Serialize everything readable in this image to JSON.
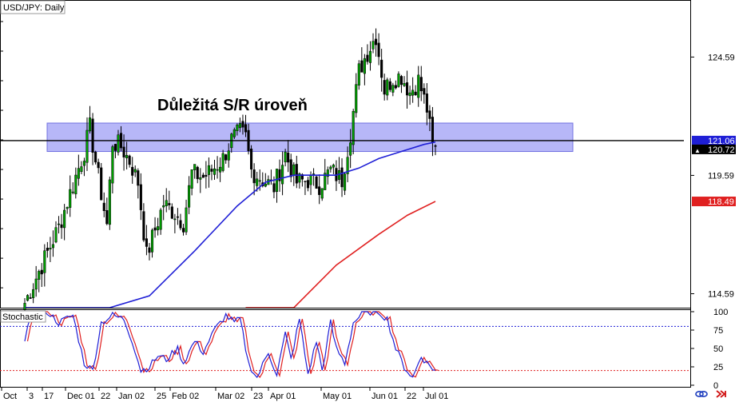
{
  "chart_data": {
    "type": "candlestick",
    "symbol_label": "USD/JPY: Daily",
    "annotation": "Důležitá S/R úroveň",
    "price_axis": {
      "ticks": [
        {
          "value": 124.59,
          "label": "124.59"
        },
        {
          "value": 119.59,
          "label": "119.59"
        },
        {
          "value": 114.59,
          "label": "114.59"
        }
      ],
      "range": [
        114.0,
        127.0
      ]
    },
    "price_tags": [
      {
        "value": 121.06,
        "label": "121.06",
        "color": "#1f1fd6",
        "text_color": "#ffffff"
      },
      {
        "value": 120.72,
        "label": "120.72",
        "color": "#000000",
        "text_color": "#ffffff"
      },
      {
        "value": 118.49,
        "label": "118.49",
        "color": "#e02020",
        "text_color": "#ffffff"
      }
    ],
    "horizontal_line": 121.06,
    "sr_zone": [
      120.6,
      121.8
    ],
    "stochastic": {
      "label": "Stochastic",
      "ticks": [
        "100",
        "75",
        "50",
        "25",
        "0"
      ],
      "levels": [
        80,
        20
      ],
      "range": [
        0,
        100
      ]
    },
    "x_axis_labels": [
      "Oct",
      "3",
      "17",
      "Dec 01",
      "22",
      "Jan 02",
      "25",
      "Feb 02",
      "Mar 02",
      "23",
      "Apr 01",
      "May 01",
      "Jun 01",
      "22",
      "Jul 01"
    ],
    "bars": 150,
    "ma_colors": {
      "blue": "#1f1fd6",
      "red": "#e02020"
    }
  },
  "icons": {
    "link": "link-icon",
    "arrow": "scroll-right-icon"
  }
}
